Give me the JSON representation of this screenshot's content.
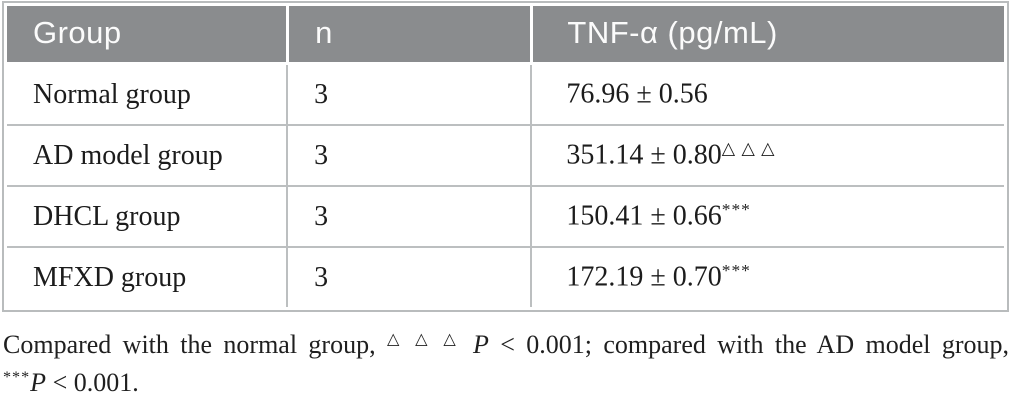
{
  "table": {
    "columns": [
      "Group",
      "n",
      "TNF-α (pg/mL)"
    ],
    "rows": [
      {
        "group": "Normal group",
        "n": "3",
        "value": "76.96 ± 0.56",
        "sup": ""
      },
      {
        "group": "AD model group",
        "n": "3",
        "value": "351.14 ± 0.80",
        "sup": "△ △ △"
      },
      {
        "group": "DHCL group",
        "n": "3",
        "value": "150.41 ± 0.66",
        "sup": "***"
      },
      {
        "group": "MFXD group",
        "n": "3",
        "value": "172.19 ± 0.70",
        "sup": "***"
      }
    ]
  },
  "footnote": {
    "line1": {
      "text1": "Compared with the normal group, ",
      "sup1": "△ △ △",
      "p1": " P",
      "text2": " < 0.001; compared with the AD model group,"
    },
    "line2": {
      "sup2": "***",
      "p2": "P",
      "text3": " < 0.001."
    }
  },
  "colors": {
    "header_bg": "#8a8c8e",
    "header_text": "#fbfbfb",
    "border": "#b9bcbd",
    "body_text": "#1c1c1c"
  }
}
